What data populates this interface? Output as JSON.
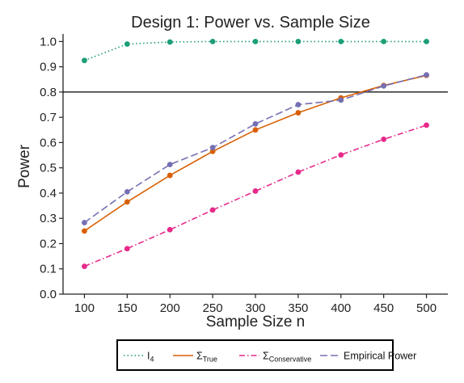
{
  "chart_data": {
    "type": "line",
    "title": "Design 1: Power vs. Sample Size",
    "xlabel": "Sample Size n",
    "ylabel": "Power",
    "x": [
      100,
      150,
      200,
      250,
      300,
      350,
      400,
      450,
      500
    ],
    "xlim": [
      75,
      525
    ],
    "ylim": [
      0,
      1.03
    ],
    "yticks": [
      "0.0",
      "0.1",
      "0.2",
      "0.3",
      "0.4",
      "0.5",
      "0.6",
      "0.7",
      "0.8",
      "0.9",
      "1.0"
    ],
    "xticks": [
      "100",
      "150",
      "200",
      "250",
      "300",
      "350",
      "400",
      "450",
      "500"
    ],
    "reference_line": 0.8,
    "grid": false,
    "legend_position": "bottom",
    "series": [
      {
        "key": "i4",
        "label_main": "I",
        "label_sub": "4",
        "color": "#1b9e77",
        "style": "dotted",
        "values": [
          0.925,
          0.99,
          0.998,
          1.0,
          1.0,
          1.0,
          1.0,
          1.0,
          1.0
        ]
      },
      {
        "key": "sigma_true",
        "label_main": "Σ",
        "label_sub": "True",
        "color": "#d95f02",
        "style": "solid",
        "values": [
          0.25,
          0.365,
          0.47,
          0.565,
          0.65,
          0.718,
          0.777,
          0.826,
          0.866
        ]
      },
      {
        "key": "sigma_conservative",
        "label_main": "Σ",
        "label_sub": "Conservative",
        "color": "#e7298a",
        "style": "dashdot",
        "values": [
          0.11,
          0.18,
          0.255,
          0.333,
          0.408,
          0.483,
          0.551,
          0.613,
          0.669
        ]
      },
      {
        "key": "empirical",
        "label_main": "Empirical Power",
        "label_sub": "",
        "color": "#7570b3",
        "style": "dashed",
        "values": [
          0.283,
          0.405,
          0.513,
          0.58,
          0.674,
          0.75,
          0.768,
          0.824,
          0.868
        ]
      }
    ]
  }
}
